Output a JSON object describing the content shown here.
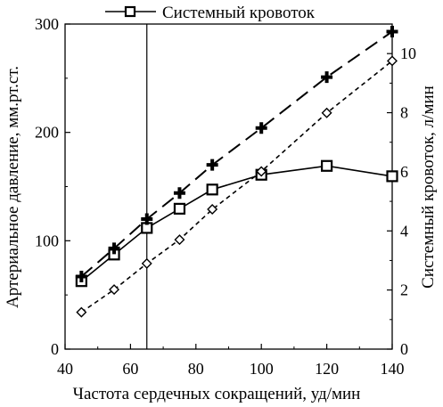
{
  "chart_data": {
    "type": "line",
    "legend": {
      "placement": "top-center",
      "entries": [
        "Системный кровоток"
      ]
    },
    "xlabel": "Частота сердечных сокращений, уд/мин",
    "ylabel_left": "Артериальное давление, мм.рт.ст.",
    "ylabel_right": "Системный кровоток, л/мин",
    "xlim": [
      40,
      140
    ],
    "ylim_left": [
      0,
      300
    ],
    "ylim_right": [
      0,
      11
    ],
    "x_ticks": [
      "40",
      "60",
      "80",
      "100",
      "120",
      "140"
    ],
    "y_left_ticks": [
      "0",
      "100",
      "200",
      "300"
    ],
    "y_right_ticks": [
      "0",
      "2",
      "4",
      "6",
      "8",
      "10"
    ],
    "reference_line_x": 65,
    "series": [
      {
        "name": "Системный кровоток",
        "axis": "right",
        "marker": "square",
        "line": "solid",
        "x": [
          45,
          55,
          65,
          75,
          85,
          100,
          120,
          140
        ],
        "y": [
          2.3,
          3.2,
          4.1,
          4.75,
          5.4,
          5.9,
          6.2,
          5.85
        ]
      },
      {
        "axis": "left",
        "marker": "plus",
        "line": "long-dash",
        "x": [
          45,
          55,
          65,
          75,
          85,
          100,
          120,
          140
        ],
        "y": [
          67,
          93,
          120,
          144,
          170,
          204,
          251,
          293
        ]
      },
      {
        "axis": "left",
        "marker": "diamond",
        "line": "short-dash",
        "x": [
          45,
          55,
          65,
          75,
          85,
          100,
          120,
          140
        ],
        "y": [
          34,
          55,
          79,
          101,
          129,
          164,
          218,
          266
        ]
      }
    ]
  }
}
